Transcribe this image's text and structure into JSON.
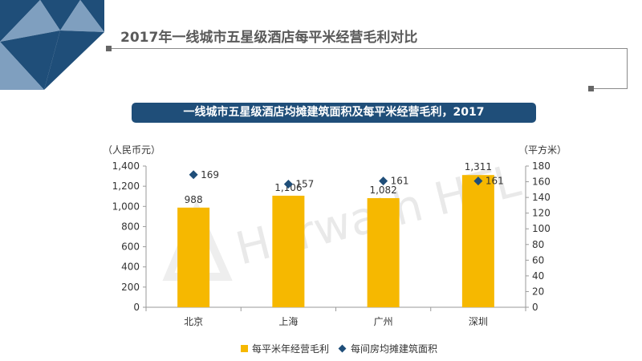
{
  "page": {
    "title": "2017年一线城市五星级酒店每平米经营毛利对比",
    "banner": "一线城市五星级酒店均摊建筑面积及每平米经营毛利，2017"
  },
  "colors": {
    "bar": "#f6b800",
    "diamond": "#1f4e79",
    "banner": "#1f4e79",
    "corner_dark": "#1f4e79",
    "corner_mid": "#7f9fbf"
  },
  "chart_data": {
    "type": "bar",
    "categories": [
      "北京",
      "上海",
      "广州",
      "深圳"
    ],
    "series": [
      {
        "name": "每平米年经营毛利",
        "kind": "bar",
        "axis": "left",
        "values": [
          988,
          1106,
          1082,
          1311
        ],
        "labels": [
          "988",
          "1,106",
          "1,082",
          "1,311"
        ]
      },
      {
        "name": "每间房均摊建筑面积",
        "kind": "scatter",
        "marker": "diamond",
        "axis": "right",
        "values": [
          169,
          157,
          161,
          161
        ],
        "labels": [
          "169",
          "157",
          "161",
          "161"
        ]
      }
    ],
    "y_left": {
      "unit": "（人民币元）",
      "ylim": [
        0,
        1400
      ],
      "ticks": [
        "0",
        "200",
        "400",
        "600",
        "800",
        "1,000",
        "1,200",
        "1,400"
      ]
    },
    "y_right": {
      "unit": "（平方米）",
      "ylim": [
        0,
        180
      ],
      "ticks": [
        "0",
        "20",
        "40",
        "60",
        "80",
        "100",
        "120",
        "140",
        "160",
        "180"
      ]
    },
    "grid": false,
    "legend_position": "bottom",
    "watermark": "Horwath HTL"
  }
}
